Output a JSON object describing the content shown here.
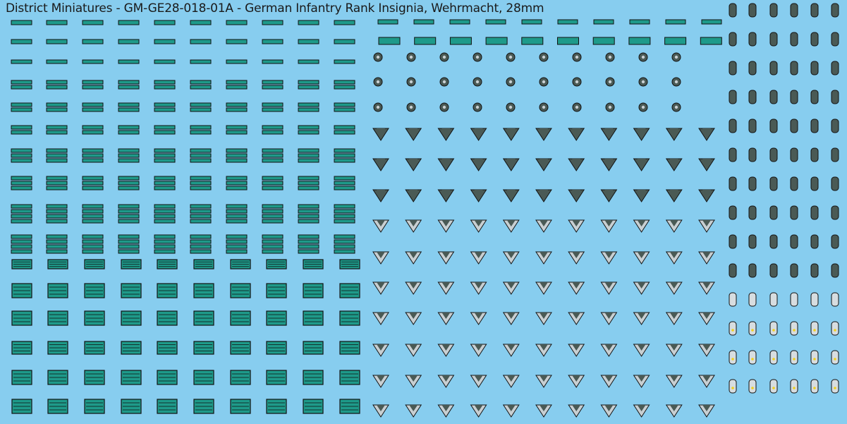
{
  "sheet": {
    "title": "District Miniatures - GM-GE28-018-01A - German Infantry Rank Insignia, Wehrmacht, 28mm"
  },
  "colors": {
    "background": "#87cdef",
    "braid_green": "#1e9a8a",
    "uniform_grey": "#4a5a55",
    "chevron_silver": "#c8cfd2",
    "outline": "#111111",
    "strap_light": "#d7dde0",
    "pip_gold": "#f0d020"
  }
}
